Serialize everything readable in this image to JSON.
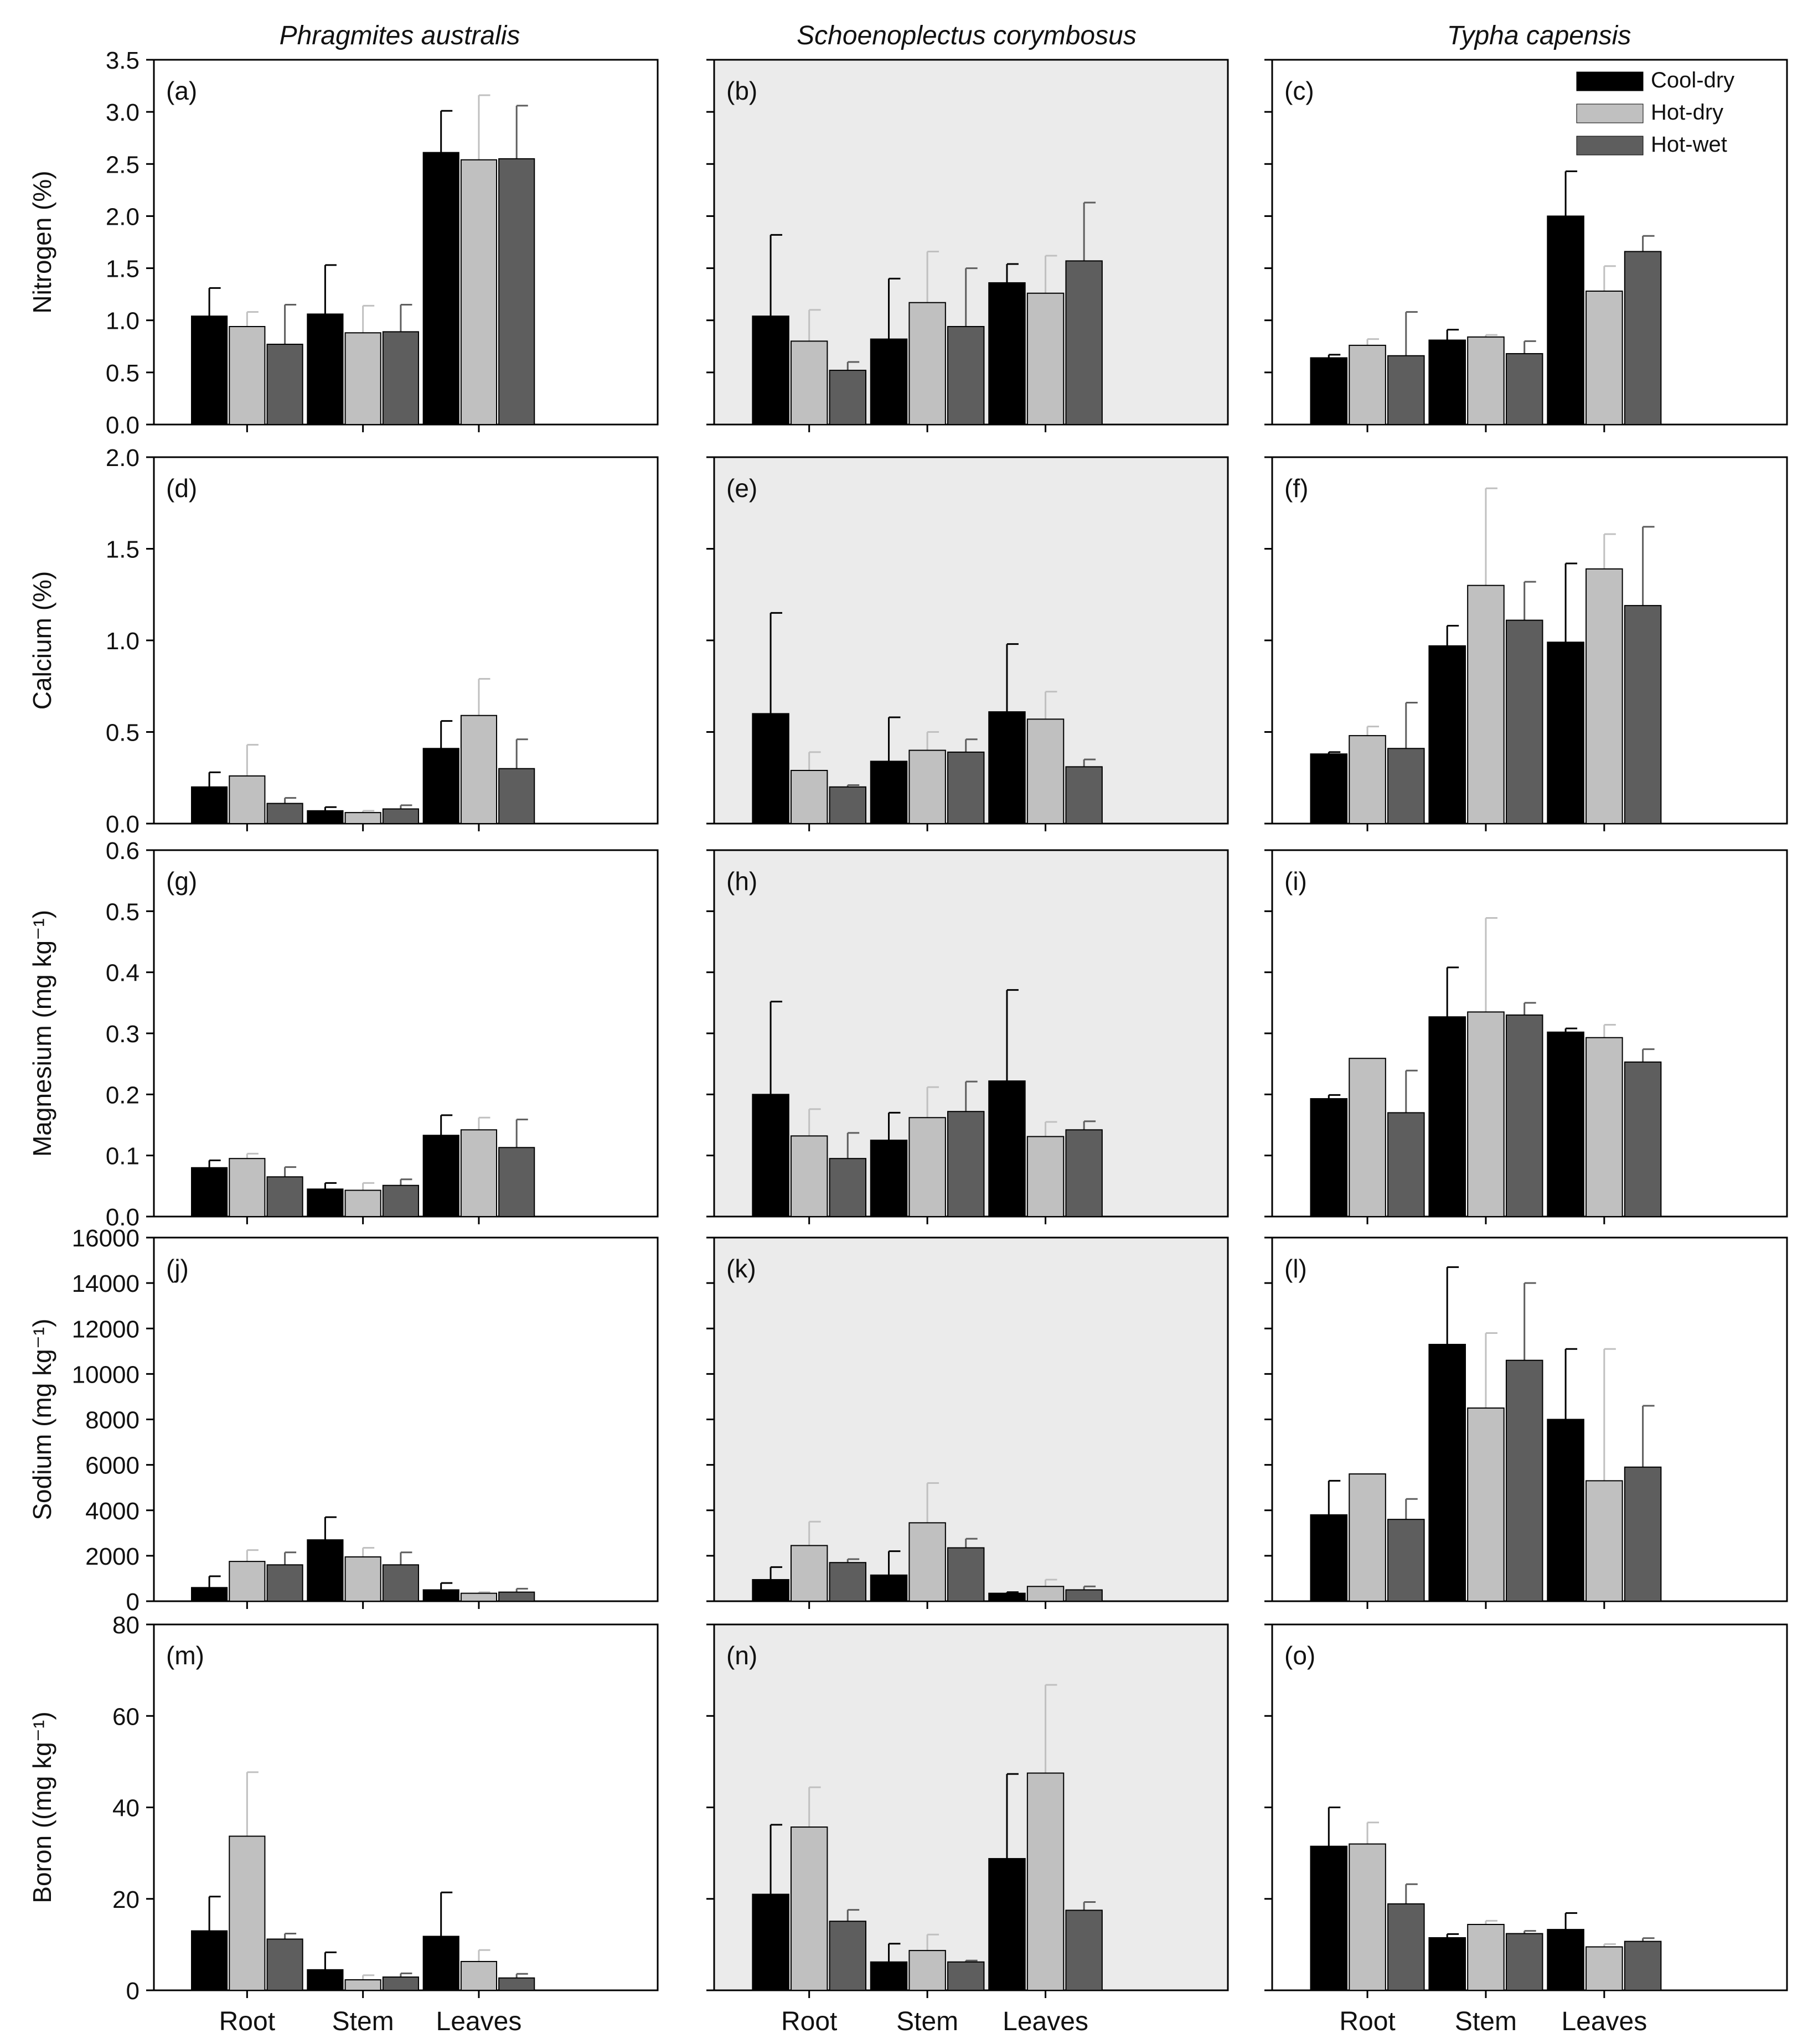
{
  "figure": {
    "species": [
      "Phragmites australis",
      "Schoenoplectus corymbosus",
      "Typha capensis"
    ],
    "categories": [
      "Root",
      "Stem",
      "Leaves"
    ],
    "legend": [
      {
        "label": "Cool-dry",
        "color": "#000000"
      },
      {
        "label": "Hot-dry",
        "color": "#c0c0c0"
      },
      {
        "label": "Hot-wet",
        "color": "#5e5e5e"
      }
    ],
    "panel_background_shaded": "#ebebeb",
    "panel_background_plain": "#ffffff"
  },
  "chart_data": [
    {
      "panel": "(a)",
      "species": "Phragmites australis",
      "type": "bar",
      "ylabel": "Nitrogen (%)",
      "ylim": [
        0,
        3.5
      ],
      "yticks": [
        0.0,
        0.5,
        1.0,
        1.5,
        2.0,
        2.5,
        3.0,
        3.5
      ],
      "ticklabels": [
        "0.0",
        "0.5",
        "1.0",
        "1.5",
        "2.0",
        "2.5",
        "3.0",
        "3.5"
      ],
      "shaded": false,
      "categories": [
        "Root",
        "Stem",
        "Leaves"
      ],
      "series": [
        {
          "name": "Cool-dry",
          "values": [
            1.04,
            1.06,
            2.61
          ],
          "errors": [
            0.27,
            0.47,
            0.4
          ]
        },
        {
          "name": "Hot-dry",
          "values": [
            0.94,
            0.88,
            2.54
          ],
          "errors": [
            0.14,
            0.26,
            0.62
          ]
        },
        {
          "name": "Hot-wet",
          "values": [
            0.77,
            0.89,
            2.55
          ],
          "errors": [
            0.38,
            0.26,
            0.51
          ]
        }
      ]
    },
    {
      "panel": "(b)",
      "species": "Schoenoplectus corymbosus",
      "type": "bar",
      "ylabel": "",
      "ylim": [
        0,
        3.5
      ],
      "yticks": [
        0.0,
        0.5,
        1.0,
        1.5,
        2.0,
        2.5,
        3.0,
        3.5
      ],
      "ticklabels": [],
      "shaded": true,
      "categories": [
        "Root",
        "Stem",
        "Leaves"
      ],
      "series": [
        {
          "name": "Cool-dry",
          "values": [
            1.04,
            0.82,
            1.36
          ],
          "errors": [
            0.78,
            0.58,
            0.18
          ]
        },
        {
          "name": "Hot-dry",
          "values": [
            0.8,
            1.17,
            1.26
          ],
          "errors": [
            0.3,
            0.49,
            0.36
          ]
        },
        {
          "name": "Hot-wet",
          "values": [
            0.52,
            0.94,
            1.57
          ],
          "errors": [
            0.08,
            0.56,
            0.56
          ]
        }
      ]
    },
    {
      "panel": "(c)",
      "species": "Typha capensis",
      "type": "bar",
      "ylabel": "",
      "ylim": [
        0,
        3.5
      ],
      "yticks": [
        0.0,
        0.5,
        1.0,
        1.5,
        2.0,
        2.5,
        3.0,
        3.5
      ],
      "ticklabels": [],
      "shaded": false,
      "categories": [
        "Root",
        "Stem",
        "Leaves"
      ],
      "legend": "top-right",
      "series": [
        {
          "name": "Cool-dry",
          "values": [
            0.64,
            0.81,
            2.0
          ],
          "errors": [
            0.03,
            0.1,
            0.43
          ]
        },
        {
          "name": "Hot-dry",
          "values": [
            0.76,
            0.84,
            1.28
          ],
          "errors": [
            0.06,
            0.02,
            0.24
          ]
        },
        {
          "name": "Hot-wet",
          "values": [
            0.66,
            0.68,
            1.66
          ],
          "errors": [
            0.42,
            0.12,
            0.15
          ]
        }
      ]
    },
    {
      "panel": "(d)",
      "species": "Phragmites australis",
      "type": "bar",
      "ylabel": "Calcium (%)",
      "ylim": [
        0,
        2.0
      ],
      "yticks": [
        0.0,
        0.5,
        1.0,
        1.5,
        2.0
      ],
      "ticklabels": [
        "0.0",
        "0.5",
        "1.0",
        "1.5",
        "2.0"
      ],
      "shaded": false,
      "categories": [
        "Root",
        "Stem",
        "Leaves"
      ],
      "series": [
        {
          "name": "Cool-dry",
          "values": [
            0.2,
            0.07,
            0.41
          ],
          "errors": [
            0.08,
            0.02,
            0.15
          ]
        },
        {
          "name": "Hot-dry",
          "values": [
            0.26,
            0.06,
            0.59
          ],
          "errors": [
            0.17,
            0.01,
            0.2
          ]
        },
        {
          "name": "Hot-wet",
          "values": [
            0.11,
            0.08,
            0.3
          ],
          "errors": [
            0.03,
            0.02,
            0.16
          ]
        }
      ]
    },
    {
      "panel": "(e)",
      "species": "Schoenoplectus corymbosus",
      "type": "bar",
      "ylabel": "",
      "ylim": [
        0,
        2.0
      ],
      "yticks": [
        0.0,
        0.5,
        1.0,
        1.5,
        2.0
      ],
      "ticklabels": [],
      "shaded": true,
      "categories": [
        "Root",
        "Stem",
        "Leaves"
      ],
      "series": [
        {
          "name": "Cool-dry",
          "values": [
            0.6,
            0.34,
            0.61
          ],
          "errors": [
            0.55,
            0.24,
            0.37
          ]
        },
        {
          "name": "Hot-dry",
          "values": [
            0.29,
            0.4,
            0.57
          ],
          "errors": [
            0.1,
            0.1,
            0.15
          ]
        },
        {
          "name": "Hot-wet",
          "values": [
            0.2,
            0.39,
            0.31
          ],
          "errors": [
            0.01,
            0.07,
            0.04
          ]
        }
      ]
    },
    {
      "panel": "(f)",
      "species": "Typha capensis",
      "type": "bar",
      "ylabel": "",
      "ylim": [
        0,
        2.0
      ],
      "yticks": [
        0.0,
        0.5,
        1.0,
        1.5,
        2.0
      ],
      "ticklabels": [],
      "shaded": false,
      "categories": [
        "Root",
        "Stem",
        "Leaves"
      ],
      "series": [
        {
          "name": "Cool-dry",
          "values": [
            0.38,
            0.97,
            0.99
          ],
          "errors": [
            0.01,
            0.11,
            0.43
          ]
        },
        {
          "name": "Hot-dry",
          "values": [
            0.48,
            1.3,
            1.39
          ],
          "errors": [
            0.05,
            0.53,
            0.19
          ]
        },
        {
          "name": "Hot-wet",
          "values": [
            0.41,
            1.11,
            1.19
          ],
          "errors": [
            0.25,
            0.21,
            0.43
          ]
        }
      ]
    },
    {
      "panel": "(g)",
      "species": "Phragmites australis",
      "type": "bar",
      "ylabel": "Magnesium (mg kg⁻¹)",
      "ylim": [
        0,
        0.6
      ],
      "yticks": [
        0.0,
        0.1,
        0.2,
        0.3,
        0.4,
        0.5,
        0.6
      ],
      "ticklabels": [
        "0.0",
        "0.1",
        "0.2",
        "0.3",
        "0.4",
        "0.5",
        "0.6"
      ],
      "shaded": false,
      "categories": [
        "Root",
        "Stem",
        "Leaves"
      ],
      "series": [
        {
          "name": "Cool-dry",
          "values": [
            0.08,
            0.045,
            0.133
          ],
          "errors": [
            0.012,
            0.01,
            0.033
          ]
        },
        {
          "name": "Hot-dry",
          "values": [
            0.095,
            0.043,
            0.142
          ],
          "errors": [
            0.008,
            0.012,
            0.02
          ]
        },
        {
          "name": "Hot-wet",
          "values": [
            0.065,
            0.051,
            0.113
          ],
          "errors": [
            0.016,
            0.01,
            0.046
          ]
        }
      ]
    },
    {
      "panel": "(h)",
      "species": "Schoenoplectus corymbosus",
      "type": "bar",
      "ylabel": "",
      "ylim": [
        0,
        0.6
      ],
      "yticks": [
        0.0,
        0.1,
        0.2,
        0.3,
        0.4,
        0.5,
        0.6
      ],
      "ticklabels": [],
      "shaded": true,
      "categories": [
        "Root",
        "Stem",
        "Leaves"
      ],
      "series": [
        {
          "name": "Cool-dry",
          "values": [
            0.2,
            0.125,
            0.222
          ],
          "errors": [
            0.152,
            0.045,
            0.149
          ]
        },
        {
          "name": "Hot-dry",
          "values": [
            0.132,
            0.162,
            0.131
          ],
          "errors": [
            0.044,
            0.05,
            0.024
          ]
        },
        {
          "name": "Hot-wet",
          "values": [
            0.095,
            0.172,
            0.142
          ],
          "errors": [
            0.042,
            0.049,
            0.014
          ]
        }
      ]
    },
    {
      "panel": "(i)",
      "species": "Typha capensis",
      "type": "bar",
      "ylabel": "",
      "ylim": [
        0,
        0.6
      ],
      "yticks": [
        0.0,
        0.1,
        0.2,
        0.3,
        0.4,
        0.5,
        0.6
      ],
      "ticklabels": [],
      "shaded": false,
      "categories": [
        "Root",
        "Stem",
        "Leaves"
      ],
      "series": [
        {
          "name": "Cool-dry",
          "values": [
            0.193,
            0.327,
            0.302
          ],
          "errors": [
            0.006,
            0.081,
            0.006
          ]
        },
        {
          "name": "Hot-dry",
          "values": [
            0.259,
            0.335,
            0.293
          ],
          "errors": [
            0.0,
            0.154,
            0.021
          ]
        },
        {
          "name": "Hot-wet",
          "values": [
            0.17,
            0.33,
            0.253
          ],
          "errors": [
            0.069,
            0.02,
            0.021
          ]
        }
      ]
    },
    {
      "panel": "(j)",
      "species": "Phragmites australis",
      "type": "bar",
      "ylabel": "Sodium (mg kg⁻¹)",
      "ylim": [
        0,
        16000
      ],
      "yticks": [
        0,
        2000,
        4000,
        6000,
        8000,
        10000,
        12000,
        14000,
        16000
      ],
      "ticklabels": [
        "0",
        "2000",
        "4000",
        "6000",
        "8000",
        "10000",
        "12000",
        "14000",
        "16000"
      ],
      "shaded": false,
      "categories": [
        "Root",
        "Stem",
        "Leaves"
      ],
      "series": [
        {
          "name": "Cool-dry",
          "values": [
            600,
            2700,
            500
          ],
          "errors": [
            500,
            1000,
            300
          ]
        },
        {
          "name": "Hot-dry",
          "values": [
            1750,
            1950,
            350
          ],
          "errors": [
            500,
            400,
            50
          ]
        },
        {
          "name": "Hot-wet",
          "values": [
            1600,
            1600,
            400
          ],
          "errors": [
            550,
            550,
            150
          ]
        }
      ]
    },
    {
      "panel": "(k)",
      "species": "Schoenoplectus corymbosus",
      "type": "bar",
      "ylabel": "",
      "ylim": [
        0,
        16000
      ],
      "yticks": [
        0,
        2000,
        4000,
        6000,
        8000,
        10000,
        12000,
        14000,
        16000
      ],
      "ticklabels": [],
      "shaded": true,
      "categories": [
        "Root",
        "Stem",
        "Leaves"
      ],
      "series": [
        {
          "name": "Cool-dry",
          "values": [
            950,
            1150,
            350
          ],
          "errors": [
            550,
            1050,
            50
          ]
        },
        {
          "name": "Hot-dry",
          "values": [
            2450,
            3450,
            650
          ],
          "errors": [
            1050,
            1750,
            300
          ]
        },
        {
          "name": "Hot-wet",
          "values": [
            1700,
            2350,
            500
          ],
          "errors": [
            150,
            400,
            150
          ]
        }
      ]
    },
    {
      "panel": "(l)",
      "species": "Typha capensis",
      "type": "bar",
      "ylabel": "",
      "ylim": [
        0,
        16000
      ],
      "yticks": [
        0,
        2000,
        4000,
        6000,
        8000,
        10000,
        12000,
        14000,
        16000
      ],
      "ticklabels": [],
      "shaded": false,
      "categories": [
        "Root",
        "Stem",
        "Leaves"
      ],
      "series": [
        {
          "name": "Cool-dry",
          "values": [
            3800,
            11300,
            8000
          ],
          "errors": [
            1500,
            3400,
            3100
          ]
        },
        {
          "name": "Hot-dry",
          "values": [
            5600,
            8500,
            5300
          ],
          "errors": [
            0,
            3300,
            5800
          ]
        },
        {
          "name": "Hot-wet",
          "values": [
            3600,
            10600,
            5900
          ],
          "errors": [
            900,
            3400,
            2700
          ]
        }
      ]
    },
    {
      "panel": "(m)",
      "species": "Phragmites australis",
      "type": "bar",
      "ylabel": "Boron ((mg kg⁻¹)",
      "ylim": [
        0,
        80
      ],
      "yticks": [
        0,
        20,
        40,
        60,
        80
      ],
      "ticklabels": [
        "0",
        "20",
        "40",
        "60",
        "80"
      ],
      "shaded": false,
      "categories": [
        "Root",
        "Stem",
        "Leaves"
      ],
      "series": [
        {
          "name": "Cool-dry",
          "values": [
            13.0,
            4.5,
            11.8
          ],
          "errors": [
            7.5,
            3.8,
            9.6
          ]
        },
        {
          "name": "Hot-dry",
          "values": [
            33.7,
            2.3,
            6.3
          ],
          "errors": [
            14.0,
            1.0,
            2.5
          ]
        },
        {
          "name": "Hot-wet",
          "values": [
            11.2,
            2.9,
            2.7
          ],
          "errors": [
            1.2,
            0.8,
            0.9
          ]
        }
      ]
    },
    {
      "panel": "(n)",
      "species": "Schoenoplectus corymbosus",
      "type": "bar",
      "ylabel": "",
      "ylim": [
        0,
        80
      ],
      "yticks": [
        0,
        20,
        40,
        60,
        80
      ],
      "ticklabels": [],
      "shaded": true,
      "categories": [
        "Root",
        "Stem",
        "Leaves"
      ],
      "series": [
        {
          "name": "Cool-dry",
          "values": [
            21.0,
            6.2,
            28.8
          ],
          "errors": [
            15.2,
            4.0,
            18.5
          ]
        },
        {
          "name": "Hot-dry",
          "values": [
            35.7,
            8.7,
            47.5
          ],
          "errors": [
            8.7,
            3.5,
            19.3
          ]
        },
        {
          "name": "Hot-wet",
          "values": [
            15.1,
            6.2,
            17.5
          ],
          "errors": [
            2.5,
            0.3,
            1.8
          ]
        }
      ]
    },
    {
      "panel": "(o)",
      "species": "Typha capensis",
      "type": "bar",
      "ylabel": "",
      "ylim": [
        0,
        80
      ],
      "yticks": [
        0,
        20,
        40,
        60,
        80
      ],
      "ticklabels": [],
      "shaded": false,
      "categories": [
        "Root",
        "Stem",
        "Leaves"
      ],
      "series": [
        {
          "name": "Cool-dry",
          "values": [
            31.5,
            11.5,
            13.3
          ],
          "errors": [
            8.5,
            0.8,
            3.6
          ]
        },
        {
          "name": "Hot-dry",
          "values": [
            32.0,
            14.4,
            9.5
          ],
          "errors": [
            4.7,
            0.8,
            0.6
          ]
        },
        {
          "name": "Hot-wet",
          "values": [
            18.9,
            12.4,
            10.7
          ],
          "errors": [
            4.3,
            0.6,
            0.7
          ]
        }
      ]
    }
  ]
}
